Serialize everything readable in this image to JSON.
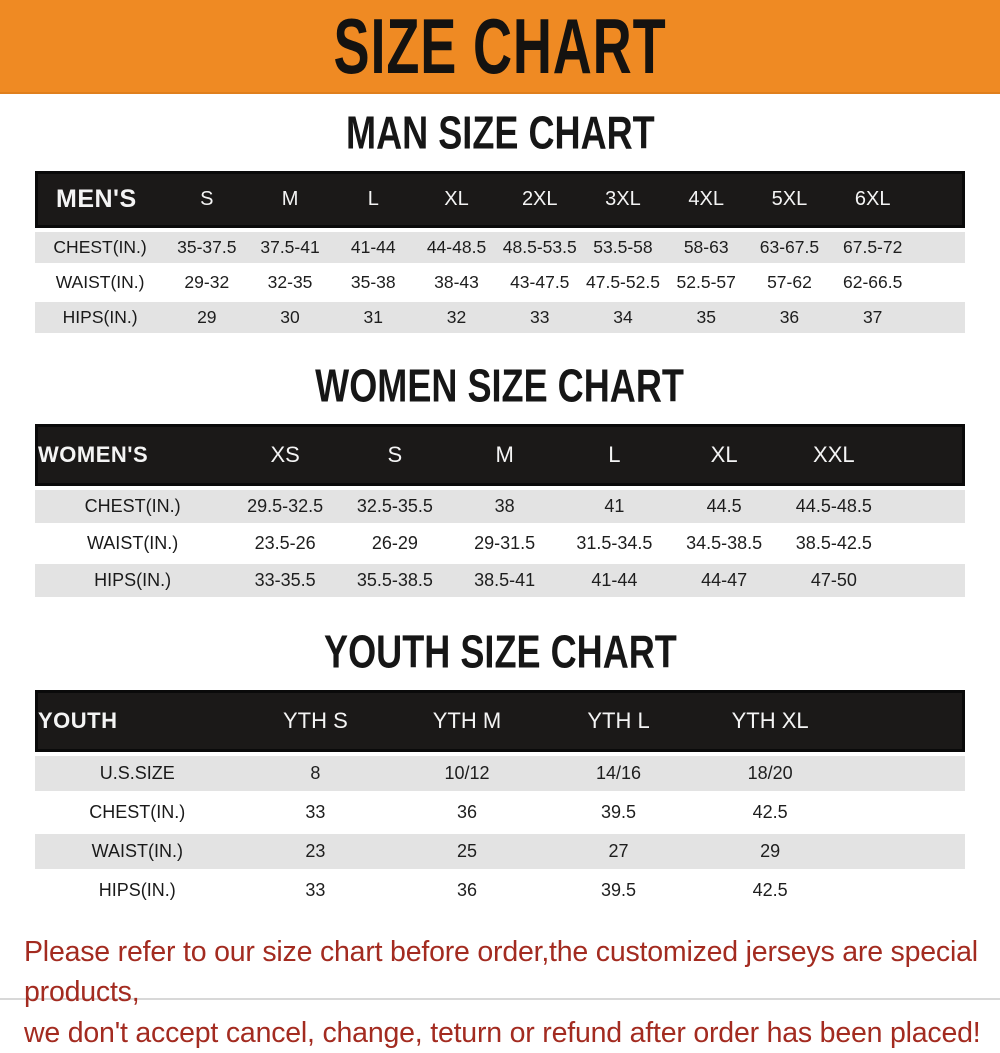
{
  "banner": {
    "title": "SIZE CHART",
    "bg_color": "#EF8A23"
  },
  "sections": [
    {
      "heading": "MAN SIZE CHART",
      "corner_label": "MEN'S",
      "columns": [
        "S",
        "M",
        "L",
        "XL",
        "2XL",
        "3XL",
        "4XL",
        "5XL",
        "6XL"
      ],
      "rows": [
        {
          "label": "CHEST(IN.)",
          "values": [
            "35-37.5",
            "37.5-41",
            "41-44",
            "44-48.5",
            "48.5-53.5",
            "53.5-58",
            "58-63",
            "63-67.5",
            "67.5-72"
          ]
        },
        {
          "label": "WAIST(IN.)",
          "values": [
            "29-32",
            "32-35",
            "35-38",
            "38-43",
            "43-47.5",
            "47.5-52.5",
            "52.5-57",
            "57-62",
            "62-66.5"
          ]
        },
        {
          "label": "HIPS(IN.)",
          "values": [
            "29",
            "30",
            "31",
            "32",
            "33",
            "34",
            "35",
            "36",
            "37"
          ]
        }
      ]
    },
    {
      "heading": "WOMEN SIZE CHART",
      "corner_label": "WOMEN'S",
      "columns": [
        "XS",
        "S",
        "M",
        "L",
        "XL",
        "XXL"
      ],
      "rows": [
        {
          "label": "CHEST(IN.)",
          "values": [
            "29.5-32.5",
            "32.5-35.5",
            "38",
            "41",
            "44.5",
            "44.5-48.5"
          ]
        },
        {
          "label": "WAIST(IN.)",
          "values": [
            "23.5-26",
            "26-29",
            "29-31.5",
            "31.5-34.5",
            "34.5-38.5",
            "38.5-42.5"
          ]
        },
        {
          "label": "HIPS(IN.)",
          "values": [
            "33-35.5",
            "35.5-38.5",
            "38.5-41",
            "41-44",
            "44-47",
            "47-50"
          ]
        }
      ]
    },
    {
      "heading": "YOUTH SIZE CHART",
      "corner_label": "YOUTH",
      "columns": [
        "YTH S",
        "YTH M",
        "YTH L",
        "YTH XL"
      ],
      "rows": [
        {
          "label": "U.S.SIZE",
          "values": [
            "8",
            "10/12",
            "14/16",
            "18/20"
          ]
        },
        {
          "label": "CHEST(IN.)",
          "values": [
            "33",
            "36",
            "39.5",
            "42.5"
          ]
        },
        {
          "label": "WAIST(IN.)",
          "values": [
            "23",
            "25",
            "27",
            "29"
          ]
        },
        {
          "label": "HIPS(IN.)",
          "values": [
            "33",
            "36",
            "39.5",
            "42.5"
          ]
        }
      ]
    }
  ],
  "footer": {
    "line1": "Please refer to our size chart before order,the customized jerseys are special products,",
    "line2": "we don't accept cancel, change, teturn or refund after order has been placed!",
    "text_color": "#A32B20"
  }
}
